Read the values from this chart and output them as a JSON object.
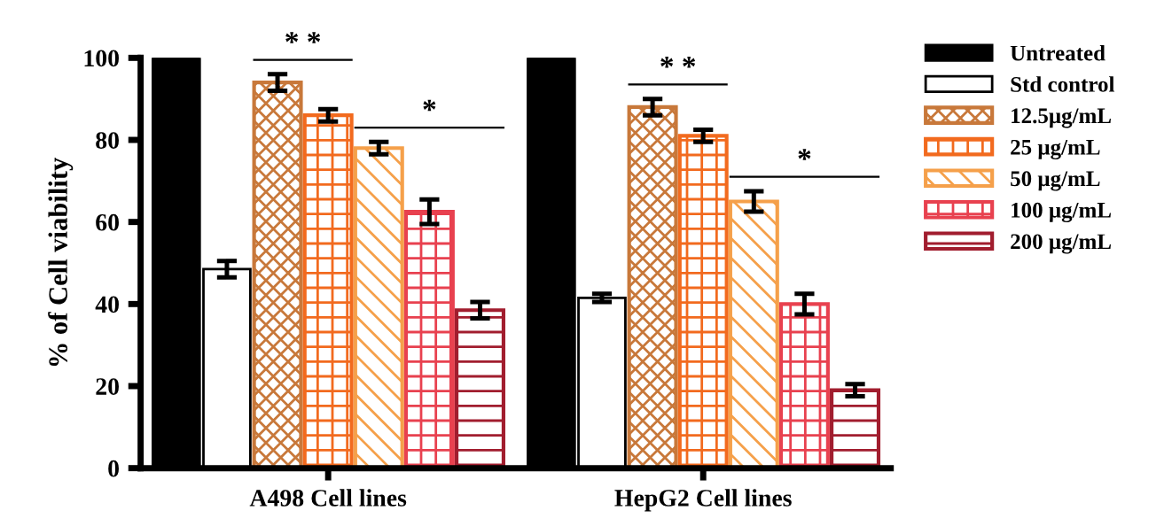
{
  "chart_data": {
    "type": "bar",
    "ylabel": "% of Cell viability",
    "categories": [
      "A498 Cell lines",
      "HepG2 Cell lines"
    ],
    "ylim": [
      0,
      100
    ],
    "yticks": [
      0,
      20,
      40,
      60,
      80,
      100
    ],
    "grid": false,
    "legend": "right",
    "series": [
      {
        "name": "Untreated",
        "color": "#000000",
        "values": [
          100,
          100
        ]
      },
      {
        "name": "Std control",
        "color": "#ffffff",
        "values": [
          48.5,
          41.5
        ],
        "errors": [
          2,
          1
        ]
      },
      {
        "name": "12.5μg/mL",
        "color": "#c8783a",
        "values": [
          94,
          88
        ],
        "errors": [
          2,
          2
        ]
      },
      {
        "name": "25 μg/mL",
        "color": "#f26a1e",
        "values": [
          86,
          81
        ],
        "errors": [
          1.5,
          1.5
        ]
      },
      {
        "name": "50 μg/mL",
        "color": "#f5a04a",
        "values": [
          78,
          65
        ],
        "errors": [
          1.5,
          2.5
        ]
      },
      {
        "name": "100 μg/mL",
        "color": "#e8414f",
        "values": [
          62.5,
          40
        ],
        "errors": [
          3,
          2.5
        ]
      },
      {
        "name": "200 μg/mL",
        "color": "#a11d2e",
        "values": [
          38.5,
          19
        ],
        "errors": [
          2,
          1.5
        ]
      }
    ],
    "annotations": [
      "* *",
      "*",
      "* *",
      "*"
    ]
  }
}
